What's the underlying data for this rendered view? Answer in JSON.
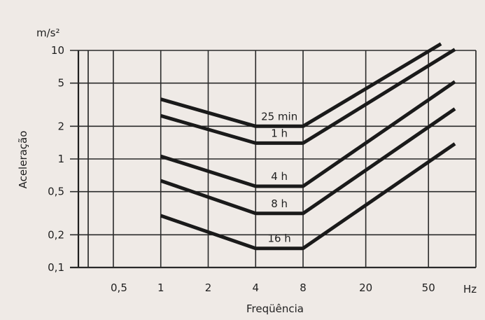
{
  "chart_data": {
    "type": "line",
    "xscale": "log",
    "yscale": "log",
    "xlabel": "Freqüência",
    "ylabel": "Aceleração",
    "xunit": "Hz",
    "yunit": "m/s²",
    "xlim": [
      0.3,
      100
    ],
    "ylim": [
      0.1,
      10
    ],
    "x_ticks": [
      {
        "value": 0.5,
        "label": "0,5"
      },
      {
        "value": 1,
        "label": "1"
      },
      {
        "value": 2,
        "label": "2"
      },
      {
        "value": 4,
        "label": "4"
      },
      {
        "value": 8,
        "label": "8"
      },
      {
        "value": 20,
        "label": "20"
      },
      {
        "value": 50,
        "label": "50"
      }
    ],
    "y_ticks": [
      {
        "value": 0.1,
        "label": "0,1"
      },
      {
        "value": 0.2,
        "label": "0,2"
      },
      {
        "value": 0.5,
        "label": "0,5"
      },
      {
        "value": 1,
        "label": "1"
      },
      {
        "value": 2,
        "label": "2"
      },
      {
        "value": 5,
        "label": "5"
      },
      {
        "value": 10,
        "label": "10"
      }
    ],
    "grid": true,
    "series": [
      {
        "name": "25 min",
        "points": [
          [
            1,
            3.55
          ],
          [
            4,
            2.0
          ],
          [
            8,
            2.0
          ],
          [
            60,
            11.5
          ]
        ]
      },
      {
        "name": "1 h",
        "points": [
          [
            1,
            2.5
          ],
          [
            4,
            1.4
          ],
          [
            8,
            1.4
          ],
          [
            80,
            11.0
          ]
        ]
      },
      {
        "name": "4 h",
        "points": [
          [
            1,
            1.06
          ],
          [
            4,
            0.56
          ],
          [
            8,
            0.56
          ],
          [
            80,
            5.6
          ]
        ]
      },
      {
        "name": "8 h",
        "points": [
          [
            1,
            0.63
          ],
          [
            4,
            0.315
          ],
          [
            8,
            0.315
          ],
          [
            80,
            3.15
          ]
        ]
      },
      {
        "name": "16 h",
        "points": [
          [
            1,
            0.3
          ],
          [
            4,
            0.15
          ],
          [
            8,
            0.15
          ],
          [
            80,
            1.5
          ]
        ]
      }
    ]
  }
}
